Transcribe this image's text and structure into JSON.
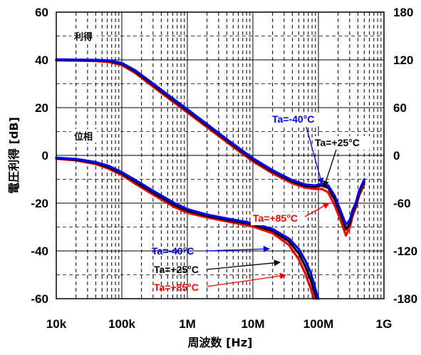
{
  "chart_data": {
    "type": "line",
    "xscale": "log",
    "xlabel": "周波数 [Hz]",
    "ylabel": "電圧利得 [dB]",
    "xlim": [
      4,
      9
    ],
    "ylim": [
      -60,
      60
    ],
    "y2lim": [
      -180,
      180
    ],
    "x_tick_labels": [
      "10k",
      "100k",
      "1M",
      "10M",
      "100M",
      "1G"
    ],
    "y_tick_labels": [
      "60",
      "40",
      "20",
      "0",
      "-20",
      "-40",
      "-60"
    ],
    "y2_tick_labels": [
      "180",
      "120",
      "60",
      "0",
      "-60",
      "-120",
      "-180"
    ],
    "grid": true,
    "captions": {
      "gain": "利得",
      "phase": "位相"
    },
    "colors": {
      "minus40": "#0000ff",
      "plus25": "#000000",
      "plus85": "#ff0000",
      "grid": "#000000",
      "frame": "#000000"
    },
    "annotations": {
      "gain_minus40": "Ta=-40°C",
      "gain_plus25": "Ta=+25°C",
      "gain_plus85": "Ta=+85°C",
      "phase_minus40": "Ta=-40°C",
      "phase_plus25": "Ta=+25°C",
      "phase_plus85": "Ta=+85°C"
    },
    "series": [
      {
        "name": "Ta=-40°C",
        "quantity": "gain",
        "unit": "dB",
        "x": [
          4,
          4.3,
          4.6,
          4.8,
          5,
          5.2,
          5.5,
          5.8,
          6,
          6.3,
          6.6,
          6.9,
          7,
          7.3,
          7.6,
          7.8,
          7.95,
          8.05,
          8.15,
          8.25,
          8.35,
          8.42,
          8.48,
          8.52,
          8.57,
          8.62,
          8.7
        ],
        "y": [
          40.2,
          40.1,
          40,
          39.8,
          38.7,
          35.7,
          29.6,
          23.4,
          19.3,
          13.1,
          6.8,
          0.8,
          -1.2,
          -6.2,
          -10.4,
          -12.2,
          -12.6,
          -11.9,
          -12.6,
          -17,
          -24,
          -29,
          -27,
          -23,
          -20,
          -15,
          -10
        ]
      },
      {
        "name": "Ta=+25°C",
        "quantity": "gain",
        "unit": "dB",
        "x": [
          4,
          4.3,
          4.6,
          4.8,
          5,
          5.2,
          5.5,
          5.8,
          6,
          6.3,
          6.6,
          6.9,
          7,
          7.3,
          7.6,
          7.8,
          7.95,
          8.05,
          8.15,
          8.25,
          8.35,
          8.42,
          8.48,
          8.52,
          8.57,
          8.62,
          8.7
        ],
        "y": [
          40,
          39.9,
          39.8,
          39.5,
          38.3,
          35.2,
          29,
          22.8,
          18.7,
          12.5,
          6.3,
          0.2,
          -1.8,
          -6.8,
          -11,
          -12.8,
          -13.2,
          -12.6,
          -13.6,
          -18.5,
          -25.5,
          -31,
          -28.5,
          -24,
          -21,
          -16,
          -11
        ]
      },
      {
        "name": "Ta=+85°C",
        "quantity": "gain",
        "unit": "dB",
        "x": [
          4,
          4.3,
          4.6,
          4.8,
          5,
          5.2,
          5.5,
          5.8,
          6,
          6.3,
          6.6,
          6.9,
          7,
          7.3,
          7.6,
          7.8,
          7.95,
          8.05,
          8.15,
          8.25,
          8.35,
          8.42,
          8.48,
          8.52,
          8.57,
          8.62,
          8.7
        ],
        "y": [
          39.8,
          39.7,
          39.5,
          39.1,
          37.8,
          34.6,
          28.3,
          22.1,
          18,
          11.8,
          5.6,
          -0.5,
          -2.5,
          -7.5,
          -11.7,
          -13.5,
          -14.1,
          -14,
          -15.5,
          -21,
          -28,
          -33.5,
          -30,
          -25.5,
          -22,
          -17,
          -12
        ]
      },
      {
        "name": "Ta=-40°C",
        "quantity": "phase",
        "unit": "deg",
        "x": [
          4,
          4.3,
          4.6,
          4.8,
          5,
          5.2,
          5.5,
          5.8,
          6,
          6.3,
          6.6,
          7,
          7.3,
          7.55,
          7.7,
          7.8,
          7.88,
          7.93,
          7.97,
          8
        ],
        "y": [
          -3,
          -4.5,
          -8.4,
          -13.2,
          -21,
          -30.6,
          -45.6,
          -59.7,
          -67.5,
          -74.4,
          -79.2,
          -85.2,
          -92.4,
          -104.4,
          -117.6,
          -132,
          -147,
          -160.5,
          -172.5,
          -180
        ]
      },
      {
        "name": "Ta=+25°C",
        "quantity": "phase",
        "unit": "deg",
        "x": [
          4,
          4.3,
          4.6,
          4.8,
          5,
          5.2,
          5.5,
          5.8,
          6,
          6.3,
          6.6,
          7,
          7.3,
          7.55,
          7.7,
          7.8,
          7.88,
          7.93,
          7.97
        ],
        "y": [
          -3.6,
          -5.4,
          -9.6,
          -15,
          -22.8,
          -33,
          -48,
          -62.4,
          -69.6,
          -76.2,
          -81,
          -87,
          -94.8,
          -108,
          -123,
          -139.5,
          -156,
          -169.5,
          -180
        ]
      },
      {
        "name": "Ta=+85°C",
        "quantity": "phase",
        "unit": "deg",
        "x": [
          4,
          4.3,
          4.6,
          4.8,
          5,
          5.2,
          5.5,
          5.8,
          6,
          6.3,
          6.6,
          7,
          7.3,
          7.55,
          7.7,
          7.8,
          7.88,
          7.93
        ],
        "y": [
          -4.2,
          -6.3,
          -10.8,
          -16.8,
          -24.6,
          -35.4,
          -50.4,
          -64.8,
          -72,
          -78,
          -82.8,
          -89.4,
          -97.8,
          -112.5,
          -130.5,
          -148.5,
          -166.5,
          -180
        ]
      }
    ]
  }
}
